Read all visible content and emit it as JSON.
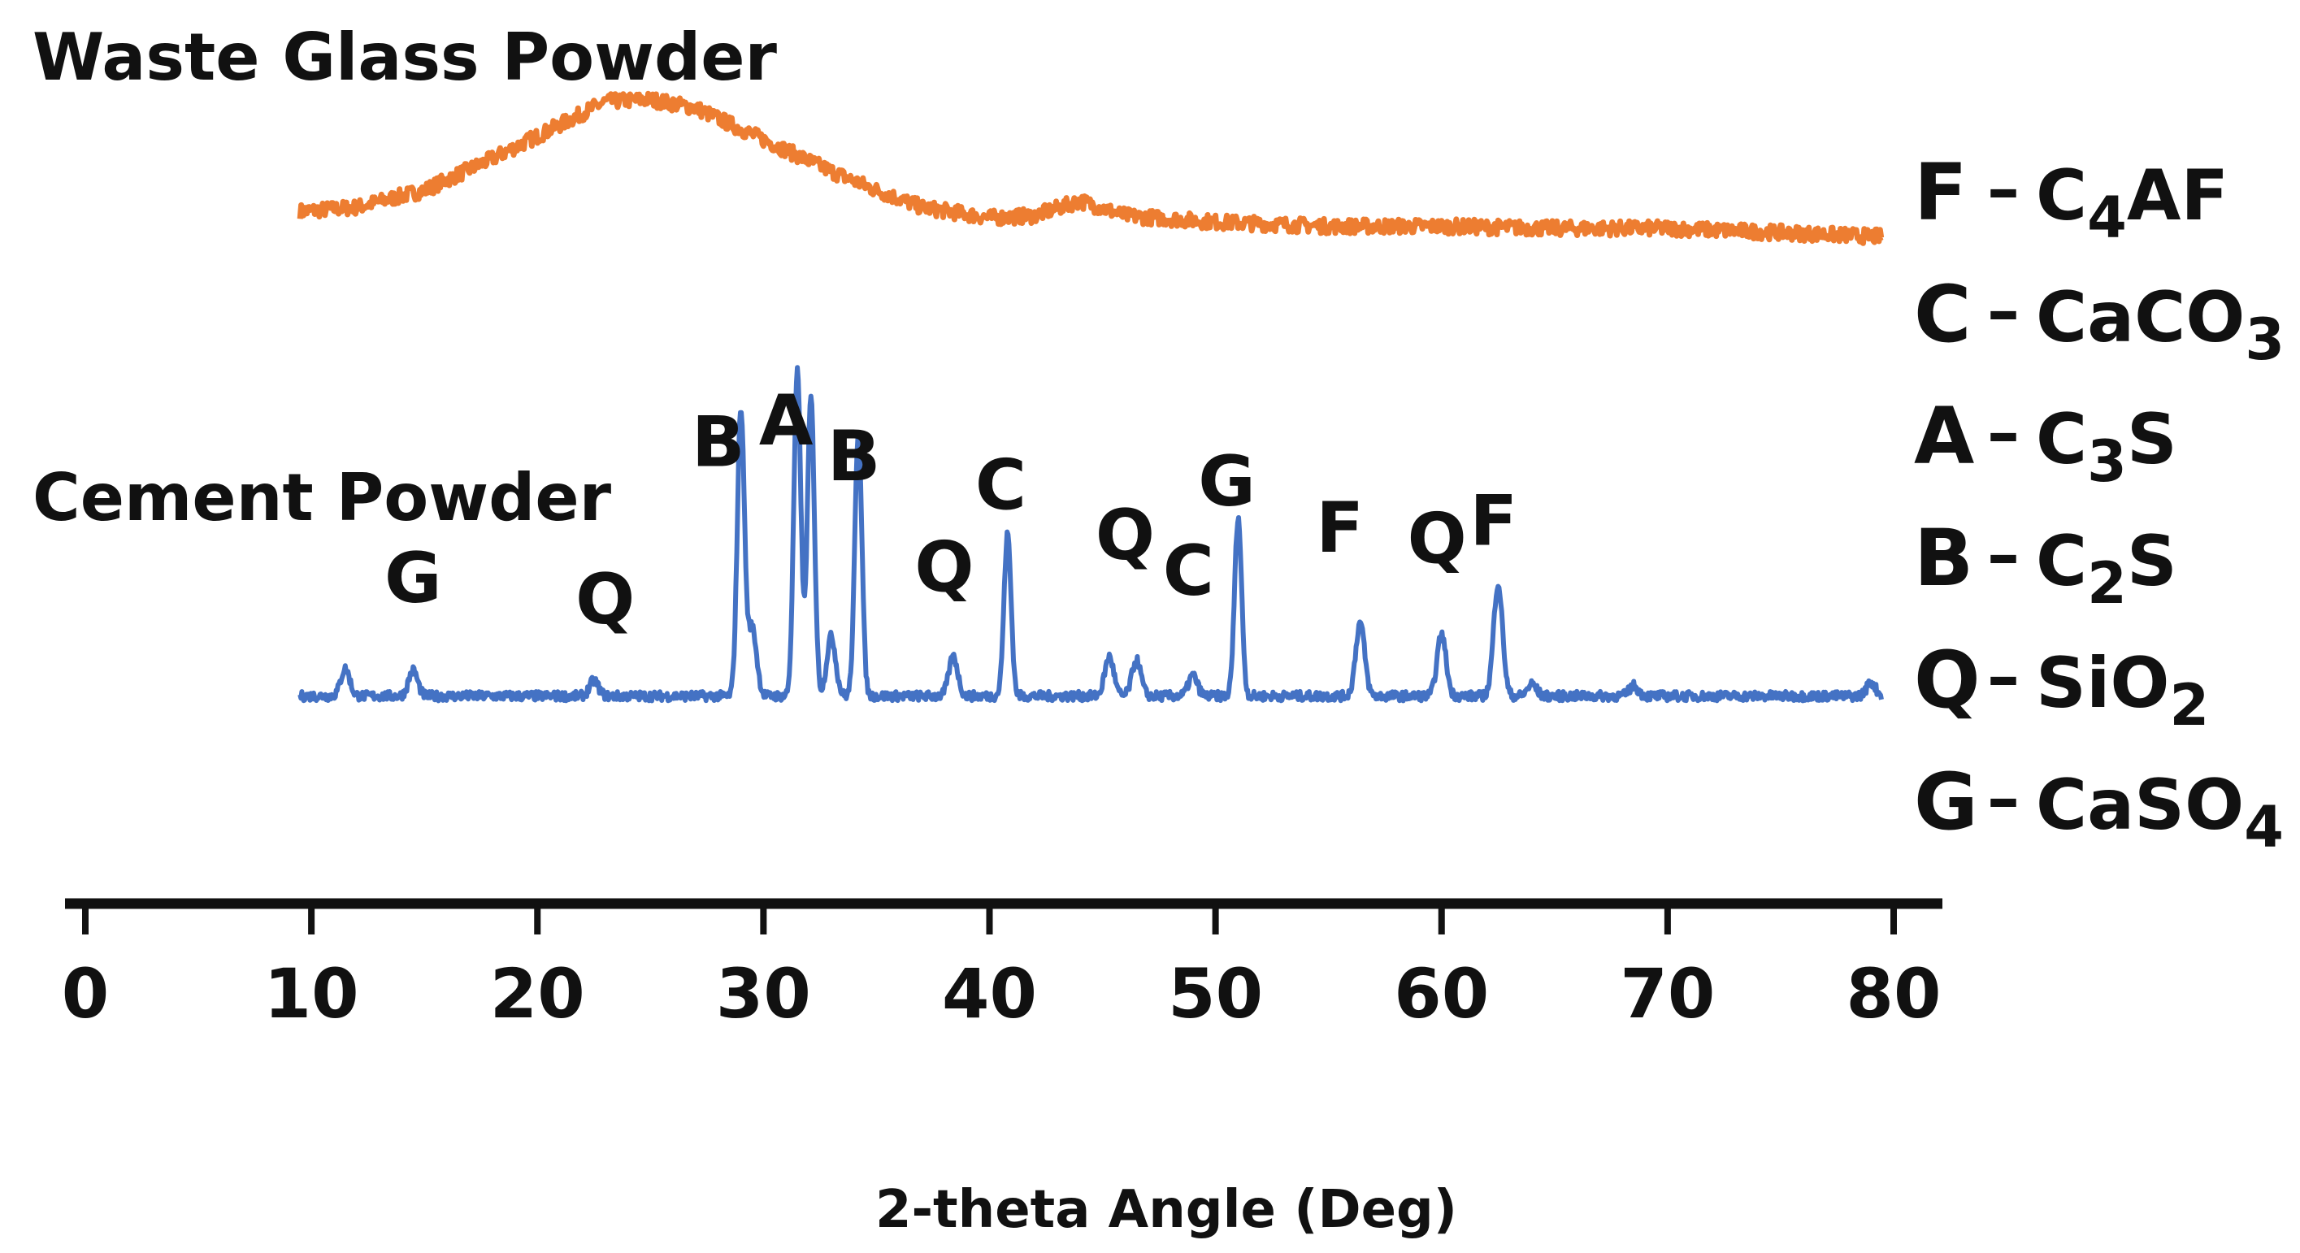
{
  "chart_data": {
    "type": "line",
    "title": "",
    "xlabel": "2-theta Angle (Deg)",
    "ylabel": "",
    "xlim": [
      0,
      80
    ],
    "x_ticks": [
      "0",
      "10",
      "20",
      "30",
      "40",
      "50",
      "60",
      "70",
      "80"
    ],
    "grid": false,
    "series": [
      {
        "name": "Waste Glass Powder",
        "color": "#ED7D31",
        "pattern": "amorphous hump",
        "x": [
          9.5,
          12,
          15,
          18,
          21,
          23,
          25,
          27,
          29,
          31,
          33,
          35,
          37,
          40,
          42,
          44,
          46,
          50,
          55,
          60,
          65,
          70,
          75,
          79.5
        ],
        "y": [
          2.3,
          2.5,
          3.3,
          4.8,
          6.4,
          7.5,
          7.6,
          7.2,
          6.2,
          5.2,
          4.2,
          3.3,
          2.5,
          2.0,
          2.1,
          2.8,
          2.1,
          1.8,
          1.6,
          1.6,
          1.5,
          1.5,
          1.3,
          1.1
        ]
      },
      {
        "name": "Cement Powder",
        "color": "#4472C4",
        "pattern": "crystalline peaks",
        "peaks": [
          {
            "x": 11.5,
            "y": 1.6,
            "label": ""
          },
          {
            "x": 14.5,
            "y": 1.5,
            "label": "G"
          },
          {
            "x": 22.5,
            "y": 0.9,
            "label": "Q"
          },
          {
            "x": 29.0,
            "y": 16.8,
            "label": "B"
          },
          {
            "x": 29.5,
            "y": 4.0,
            "label": ""
          },
          {
            "x": 31.5,
            "y": 19.0,
            "label": ""
          },
          {
            "x": 32.1,
            "y": 17.5,
            "label": "A"
          },
          {
            "x": 33.0,
            "y": 3.5,
            "label": ""
          },
          {
            "x": 34.2,
            "y": 15.5,
            "label": "B"
          },
          {
            "x": 38.4,
            "y": 2.3,
            "label": "Q"
          },
          {
            "x": 40.8,
            "y": 9.5,
            "label": "C"
          },
          {
            "x": 45.3,
            "y": 2.3,
            "label": ""
          },
          {
            "x": 46.5,
            "y": 2.1,
            "label": "Q"
          },
          {
            "x": 49.0,
            "y": 1.2,
            "label": "C"
          },
          {
            "x": 51.0,
            "y": 10.5,
            "label": "G"
          },
          {
            "x": 56.4,
            "y": 4.3,
            "label": "F"
          },
          {
            "x": 60.0,
            "y": 3.6,
            "label": "Q"
          },
          {
            "x": 62.5,
            "y": 6.6,
            "label": "F"
          },
          {
            "x": 64.0,
            "y": 0.7,
            "label": ""
          },
          {
            "x": 68.5,
            "y": 0.6,
            "label": ""
          },
          {
            "x": 79.0,
            "y": 0.8,
            "label": ""
          }
        ]
      }
    ],
    "peak_labels": [
      {
        "text": "G",
        "x": 14.5,
        "level": 0.82
      },
      {
        "text": "Q",
        "x": 23.0,
        "level": 0.88
      },
      {
        "text": "B",
        "x": 28.0,
        "level": 0.44
      },
      {
        "text": "A",
        "x": 31.0,
        "level": 0.38
      },
      {
        "text": "B",
        "x": 34.0,
        "level": 0.48
      },
      {
        "text": "Q",
        "x": 38.0,
        "level": 0.79
      },
      {
        "text": "C",
        "x": 40.5,
        "level": 0.56
      },
      {
        "text": "Q",
        "x": 46.0,
        "level": 0.7
      },
      {
        "text": "C",
        "x": 48.8,
        "level": 0.8
      },
      {
        "text": "G",
        "x": 50.5,
        "level": 0.55
      },
      {
        "text": "F",
        "x": 55.5,
        "level": 0.68
      },
      {
        "text": "Q",
        "x": 59.8,
        "level": 0.71
      },
      {
        "text": "F",
        "x": 62.3,
        "level": 0.66
      }
    ],
    "legend": [
      {
        "letter": "F",
        "formula": "C",
        "sub": "4",
        "tail": "AF"
      },
      {
        "letter": "C",
        "formula": "CaCO",
        "sub": "3",
        "tail": ""
      },
      {
        "letter": "A",
        "formula": "C",
        "sub": "3",
        "tail": "S"
      },
      {
        "letter": "B",
        "formula": "C",
        "sub": "2",
        "tail": "S"
      },
      {
        "letter": "Q",
        "formula": "SiO",
        "sub": "2",
        "tail": ""
      },
      {
        "letter": "G",
        "formula": "CaSO",
        "sub": "4",
        "tail": ""
      }
    ],
    "legend_position": "right"
  }
}
